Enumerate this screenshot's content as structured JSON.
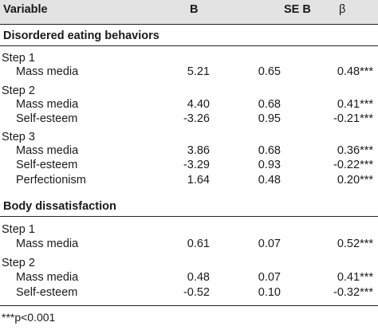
{
  "columns": {
    "variable": "Variable",
    "b": "B",
    "se_b": "SE B",
    "beta": "β"
  },
  "sections": [
    {
      "title": "Disordered eating behaviors",
      "steps": [
        {
          "label": "Step 1",
          "rows": [
            {
              "predictor": "Mass media",
              "b": "5.21",
              "se": "0.65",
              "beta": "0.48***"
            }
          ]
        },
        {
          "label": "Step 2",
          "rows": [
            {
              "predictor": "Mass media",
              "b": "4.40",
              "se": "0.68",
              "beta": "0.41***"
            },
            {
              "predictor": "Self-esteem",
              "b": "-3.26",
              "se": "0.95",
              "beta": "-0.21***"
            }
          ]
        },
        {
          "label": "Step 3",
          "rows": [
            {
              "predictor": "Mass media",
              "b": "3.86",
              "se": "0.68",
              "beta": "0.36***"
            },
            {
              "predictor": "Self-esteem",
              "b": "-3.29",
              "se": "0.93",
              "beta": "-0.22***"
            },
            {
              "predictor": "Perfectionism",
              "b": "1.64",
              "se": "0.48",
              "beta": "0.20***"
            }
          ]
        }
      ]
    },
    {
      "title": "Body dissatisfaction",
      "steps": [
        {
          "label": "Step 1",
          "rows": [
            {
              "predictor": "Mass media",
              "b": "0.61",
              "se": "0.07",
              "beta": "0.52***"
            }
          ]
        },
        {
          "label": "Step 2",
          "rows": [
            {
              "predictor": "Mass media",
              "b": "0.48",
              "se": "0.07",
              "beta": "0.41***"
            },
            {
              "predictor": "Self-esteem",
              "b": "-0.52",
              "se": "0.10",
              "beta": "-0.32***"
            }
          ]
        }
      ]
    }
  ],
  "footnote": "***p<0.001"
}
